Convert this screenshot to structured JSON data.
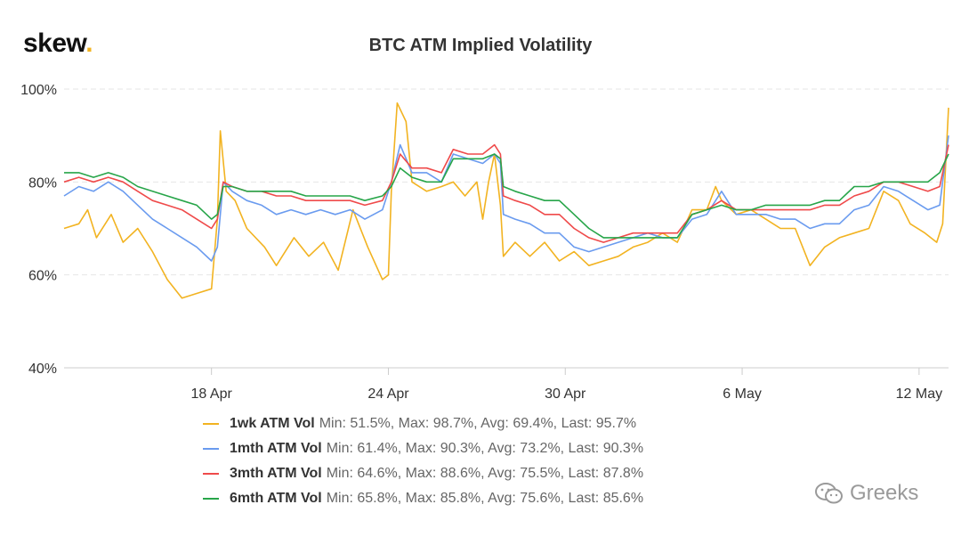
{
  "logo": {
    "text": "skew",
    "dot": "."
  },
  "watermark": {
    "text": "Greeks",
    "icon": "wechat-icon"
  },
  "chart_data": {
    "type": "line",
    "title": "BTC ATM Implied Volatility",
    "xlabel": "",
    "ylabel": "",
    "ylim": [
      40,
      100
    ],
    "yticks": [
      "40%",
      "60%",
      "80%",
      "100%"
    ],
    "xlim": [
      0,
      30
    ],
    "xticks": [
      {
        "label": "18 Apr",
        "x": 5
      },
      {
        "label": "24 Apr",
        "x": 11
      },
      {
        "label": "30 Apr",
        "x": 17
      },
      {
        "label": "6 May",
        "x": 23
      },
      {
        "label": "12 May",
        "x": 29
      }
    ],
    "grid": true,
    "legend_position": "bottom",
    "series": [
      {
        "name": "1wk ATM Vol",
        "color": "#f2b321",
        "stats": "Min: 51.5%, Max: 98.7%, Avg: 69.4%, Last: 95.7%",
        "points": [
          [
            0,
            70
          ],
          [
            0.5,
            71
          ],
          [
            0.8,
            74
          ],
          [
            1.1,
            68
          ],
          [
            1.6,
            73
          ],
          [
            2,
            67
          ],
          [
            2.5,
            70
          ],
          [
            3,
            65
          ],
          [
            3.5,
            59
          ],
          [
            4,
            55
          ],
          [
            4.5,
            56
          ],
          [
            5,
            57
          ],
          [
            5.2,
            72
          ],
          [
            5.3,
            91
          ],
          [
            5.5,
            78
          ],
          [
            5.8,
            76
          ],
          [
            6.2,
            70
          ],
          [
            6.8,
            66
          ],
          [
            7.2,
            62
          ],
          [
            7.8,
            68
          ],
          [
            8.3,
            64
          ],
          [
            8.8,
            67
          ],
          [
            9.3,
            61
          ],
          [
            9.8,
            74
          ],
          [
            10.3,
            66
          ],
          [
            10.8,
            59
          ],
          [
            11,
            60
          ],
          [
            11.1,
            78
          ],
          [
            11.3,
            97
          ],
          [
            11.6,
            93
          ],
          [
            11.8,
            80
          ],
          [
            12.3,
            78
          ],
          [
            12.8,
            79
          ],
          [
            13.2,
            80
          ],
          [
            13.6,
            77
          ],
          [
            14,
            80
          ],
          [
            14.2,
            72
          ],
          [
            14.4,
            80
          ],
          [
            14.6,
            86
          ],
          [
            14.8,
            75
          ],
          [
            14.9,
            64
          ],
          [
            15.3,
            67
          ],
          [
            15.8,
            64
          ],
          [
            16.3,
            67
          ],
          [
            16.8,
            63
          ],
          [
            17.3,
            65
          ],
          [
            17.8,
            62
          ],
          [
            18.3,
            63
          ],
          [
            18.8,
            64
          ],
          [
            19.3,
            66
          ],
          [
            19.8,
            67
          ],
          [
            20.3,
            69
          ],
          [
            20.8,
            67
          ],
          [
            21.3,
            74
          ],
          [
            21.8,
            74
          ],
          [
            22.1,
            79
          ],
          [
            22.3,
            76
          ],
          [
            22.8,
            73
          ],
          [
            23.3,
            74
          ],
          [
            23.8,
            72
          ],
          [
            24.3,
            70
          ],
          [
            24.8,
            70
          ],
          [
            25.3,
            62
          ],
          [
            25.8,
            66
          ],
          [
            26.3,
            68
          ],
          [
            26.8,
            69
          ],
          [
            27.3,
            70
          ],
          [
            27.8,
            78
          ],
          [
            28.3,
            76
          ],
          [
            28.7,
            71
          ],
          [
            29.2,
            69
          ],
          [
            29.6,
            67
          ],
          [
            29.8,
            71
          ],
          [
            30,
            96
          ]
        ]
      },
      {
        "name": "1mth ATM Vol",
        "color": "#6a9bef",
        "stats": "Min: 61.4%, Max: 90.3%, Avg: 73.2%, Last: 90.3%",
        "points": [
          [
            0,
            77
          ],
          [
            0.5,
            79
          ],
          [
            1,
            78
          ],
          [
            1.5,
            80
          ],
          [
            2,
            78
          ],
          [
            2.5,
            75
          ],
          [
            3,
            72
          ],
          [
            3.5,
            70
          ],
          [
            4,
            68
          ],
          [
            4.5,
            66
          ],
          [
            5,
            63
          ],
          [
            5.2,
            66
          ],
          [
            5.4,
            80
          ],
          [
            5.7,
            78
          ],
          [
            6.2,
            76
          ],
          [
            6.7,
            75
          ],
          [
            7.2,
            73
          ],
          [
            7.7,
            74
          ],
          [
            8.2,
            73
          ],
          [
            8.7,
            74
          ],
          [
            9.2,
            73
          ],
          [
            9.7,
            74
          ],
          [
            10.2,
            72
          ],
          [
            10.8,
            74
          ],
          [
            11.1,
            80
          ],
          [
            11.4,
            88
          ],
          [
            11.8,
            82
          ],
          [
            12.3,
            82
          ],
          [
            12.8,
            80
          ],
          [
            13.2,
            86
          ],
          [
            13.7,
            85
          ],
          [
            14.2,
            84
          ],
          [
            14.6,
            86
          ],
          [
            14.8,
            84
          ],
          [
            14.9,
            73
          ],
          [
            15.3,
            72
          ],
          [
            15.8,
            71
          ],
          [
            16.3,
            69
          ],
          [
            16.8,
            69
          ],
          [
            17.3,
            66
          ],
          [
            17.8,
            65
          ],
          [
            18.3,
            66
          ],
          [
            18.8,
            67
          ],
          [
            19.3,
            68
          ],
          [
            19.8,
            69
          ],
          [
            20.3,
            68
          ],
          [
            20.8,
            68
          ],
          [
            21.3,
            72
          ],
          [
            21.8,
            73
          ],
          [
            22.3,
            78
          ],
          [
            22.8,
            73
          ],
          [
            23.3,
            73
          ],
          [
            23.8,
            73
          ],
          [
            24.3,
            72
          ],
          [
            24.8,
            72
          ],
          [
            25.3,
            70
          ],
          [
            25.8,
            71
          ],
          [
            26.3,
            71
          ],
          [
            26.8,
            74
          ],
          [
            27.3,
            75
          ],
          [
            27.8,
            79
          ],
          [
            28.3,
            78
          ],
          [
            28.8,
            76
          ],
          [
            29.3,
            74
          ],
          [
            29.7,
            75
          ],
          [
            30,
            90
          ]
        ]
      },
      {
        "name": "3mth ATM Vol",
        "color": "#ef4a4a",
        "stats": "Min: 64.6%, Max: 88.6%, Avg: 75.5%, Last: 87.8%",
        "points": [
          [
            0,
            80
          ],
          [
            0.5,
            81
          ],
          [
            1,
            80
          ],
          [
            1.5,
            81
          ],
          [
            2,
            80
          ],
          [
            2.5,
            78
          ],
          [
            3,
            76
          ],
          [
            3.5,
            75
          ],
          [
            4,
            74
          ],
          [
            4.5,
            72
          ],
          [
            5,
            70
          ],
          [
            5.2,
            72
          ],
          [
            5.4,
            80
          ],
          [
            5.7,
            79
          ],
          [
            6.2,
            78
          ],
          [
            6.7,
            78
          ],
          [
            7.2,
            77
          ],
          [
            7.7,
            77
          ],
          [
            8.2,
            76
          ],
          [
            8.7,
            76
          ],
          [
            9.2,
            76
          ],
          [
            9.7,
            76
          ],
          [
            10.2,
            75
          ],
          [
            10.8,
            76
          ],
          [
            11.1,
            80
          ],
          [
            11.4,
            86
          ],
          [
            11.8,
            83
          ],
          [
            12.3,
            83
          ],
          [
            12.8,
            82
          ],
          [
            13.2,
            87
          ],
          [
            13.7,
            86
          ],
          [
            14.2,
            86
          ],
          [
            14.6,
            88
          ],
          [
            14.8,
            86
          ],
          [
            14.9,
            77
          ],
          [
            15.3,
            76
          ],
          [
            15.8,
            75
          ],
          [
            16.3,
            73
          ],
          [
            16.8,
            73
          ],
          [
            17.3,
            70
          ],
          [
            17.8,
            68
          ],
          [
            18.3,
            67
          ],
          [
            18.8,
            68
          ],
          [
            19.3,
            69
          ],
          [
            19.8,
            69
          ],
          [
            20.3,
            69
          ],
          [
            20.8,
            69
          ],
          [
            21.3,
            73
          ],
          [
            21.8,
            74
          ],
          [
            22.3,
            76
          ],
          [
            22.8,
            74
          ],
          [
            23.3,
            74
          ],
          [
            23.8,
            74
          ],
          [
            24.3,
            74
          ],
          [
            24.8,
            74
          ],
          [
            25.3,
            74
          ],
          [
            25.8,
            75
          ],
          [
            26.3,
            75
          ],
          [
            26.8,
            77
          ],
          [
            27.3,
            78
          ],
          [
            27.8,
            80
          ],
          [
            28.3,
            80
          ],
          [
            28.8,
            79
          ],
          [
            29.3,
            78
          ],
          [
            29.7,
            79
          ],
          [
            30,
            88
          ]
        ]
      },
      {
        "name": "6mth ATM Vol",
        "color": "#27a549",
        "stats": "Min: 65.8%, Max: 85.8%, Avg: 75.6%, Last: 85.6%",
        "points": [
          [
            0,
            82
          ],
          [
            0.5,
            82
          ],
          [
            1,
            81
          ],
          [
            1.5,
            82
          ],
          [
            2,
            81
          ],
          [
            2.5,
            79
          ],
          [
            3,
            78
          ],
          [
            3.5,
            77
          ],
          [
            4,
            76
          ],
          [
            4.5,
            75
          ],
          [
            5,
            72
          ],
          [
            5.2,
            73
          ],
          [
            5.4,
            79
          ],
          [
            5.7,
            79
          ],
          [
            6.2,
            78
          ],
          [
            6.7,
            78
          ],
          [
            7.2,
            78
          ],
          [
            7.7,
            78
          ],
          [
            8.2,
            77
          ],
          [
            8.7,
            77
          ],
          [
            9.2,
            77
          ],
          [
            9.7,
            77
          ],
          [
            10.2,
            76
          ],
          [
            10.8,
            77
          ],
          [
            11.1,
            79
          ],
          [
            11.4,
            83
          ],
          [
            11.8,
            81
          ],
          [
            12.3,
            80
          ],
          [
            12.8,
            80
          ],
          [
            13.2,
            85
          ],
          [
            13.7,
            85
          ],
          [
            14.2,
            85
          ],
          [
            14.6,
            86
          ],
          [
            14.8,
            85
          ],
          [
            14.9,
            79
          ],
          [
            15.3,
            78
          ],
          [
            15.8,
            77
          ],
          [
            16.3,
            76
          ],
          [
            16.8,
            76
          ],
          [
            17.3,
            73
          ],
          [
            17.8,
            70
          ],
          [
            18.3,
            68
          ],
          [
            18.8,
            68
          ],
          [
            19.3,
            68
          ],
          [
            19.8,
            68
          ],
          [
            20.3,
            68
          ],
          [
            20.8,
            68
          ],
          [
            21.3,
            73
          ],
          [
            21.8,
            74
          ],
          [
            22.3,
            75
          ],
          [
            22.8,
            74
          ],
          [
            23.3,
            74
          ],
          [
            23.8,
            75
          ],
          [
            24.3,
            75
          ],
          [
            24.8,
            75
          ],
          [
            25.3,
            75
          ],
          [
            25.8,
            76
          ],
          [
            26.3,
            76
          ],
          [
            26.8,
            79
          ],
          [
            27.3,
            79
          ],
          [
            27.8,
            80
          ],
          [
            28.3,
            80
          ],
          [
            28.8,
            80
          ],
          [
            29.3,
            80
          ],
          [
            29.7,
            82
          ],
          [
            30,
            86
          ]
        ]
      }
    ]
  }
}
